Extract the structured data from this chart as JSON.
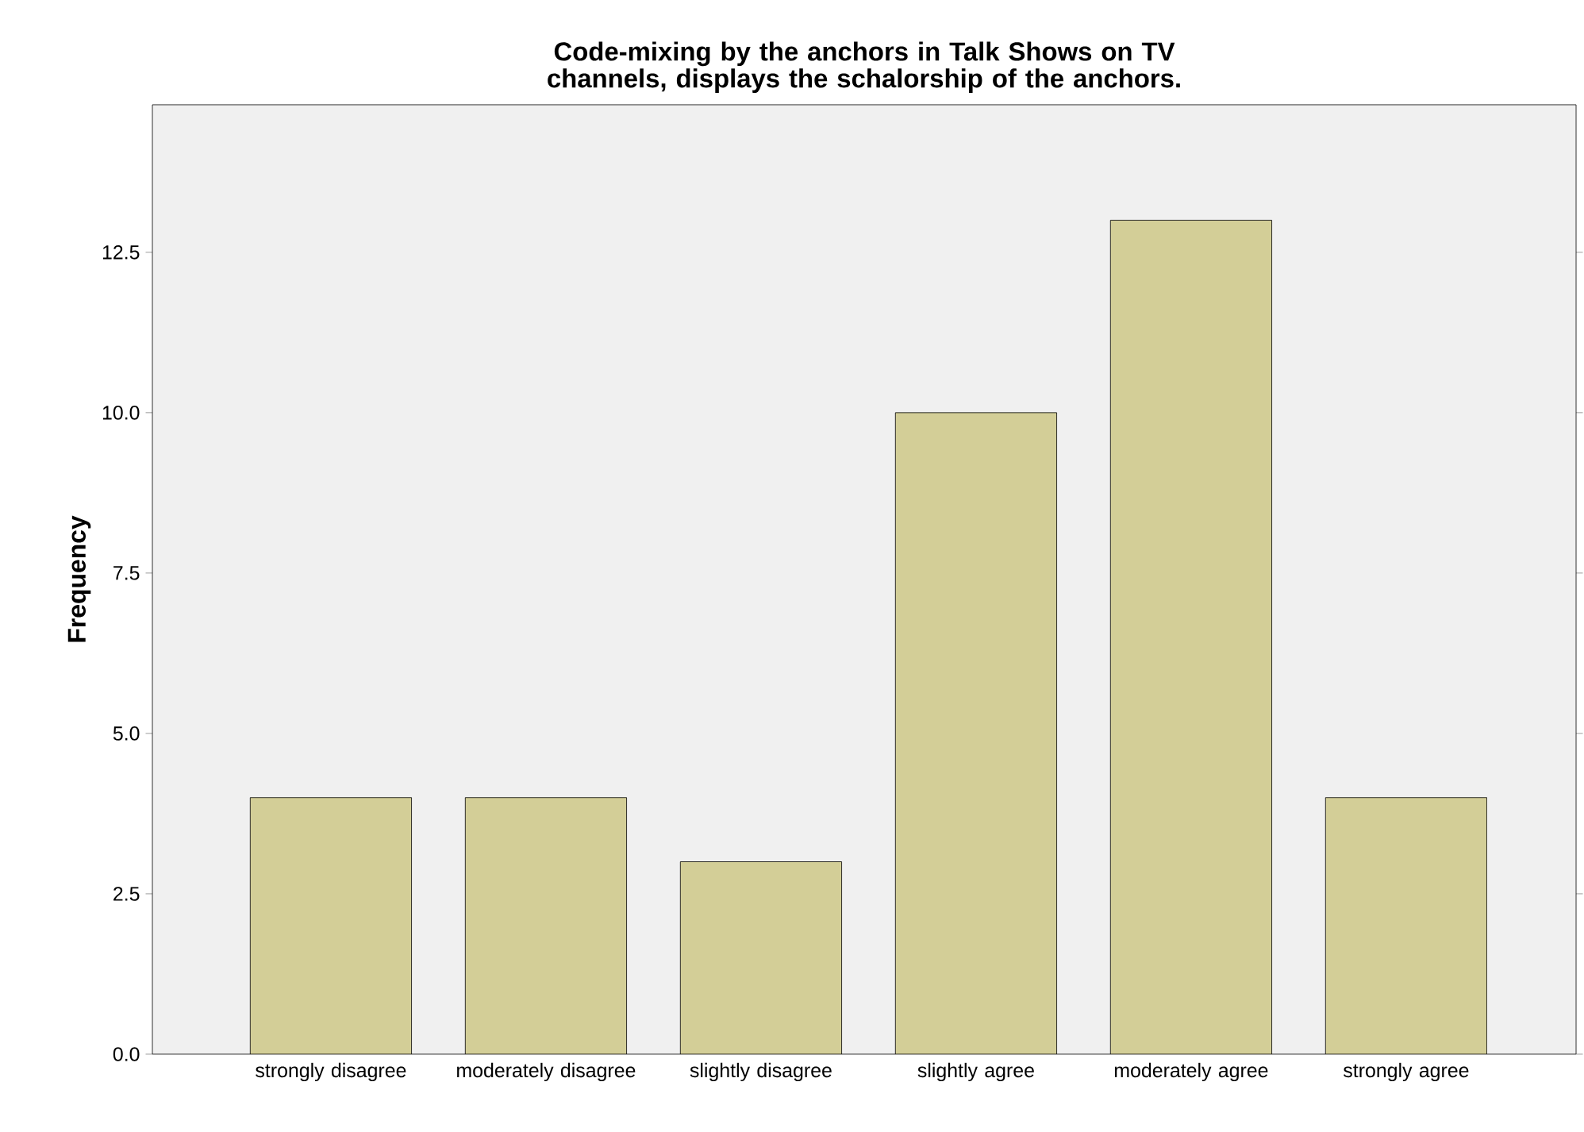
{
  "chart_data": {
    "type": "bar",
    "title": "Code-mixing by the anchors in Talk Shows on TV channels, displays the schalorship of the anchors.",
    "ylabel": "Frequency",
    "categories": [
      "strongly disagree",
      "moderately disagree",
      "slightly disagree",
      "slightly agree",
      "moderately agree",
      "strongly agree"
    ],
    "values": [
      4,
      4,
      3,
      10,
      13,
      4
    ],
    "color": "#d3ce97",
    "ylim": [
      0,
      14.8
    ],
    "yticks": [
      {
        "value": 0,
        "label": "0.0"
      },
      2.5,
      {
        "value": 5,
        "label": "5.0"
      },
      7.5,
      {
        "value": 10,
        "label": "10.0"
      },
      12.5
    ],
    "grid": false
  }
}
